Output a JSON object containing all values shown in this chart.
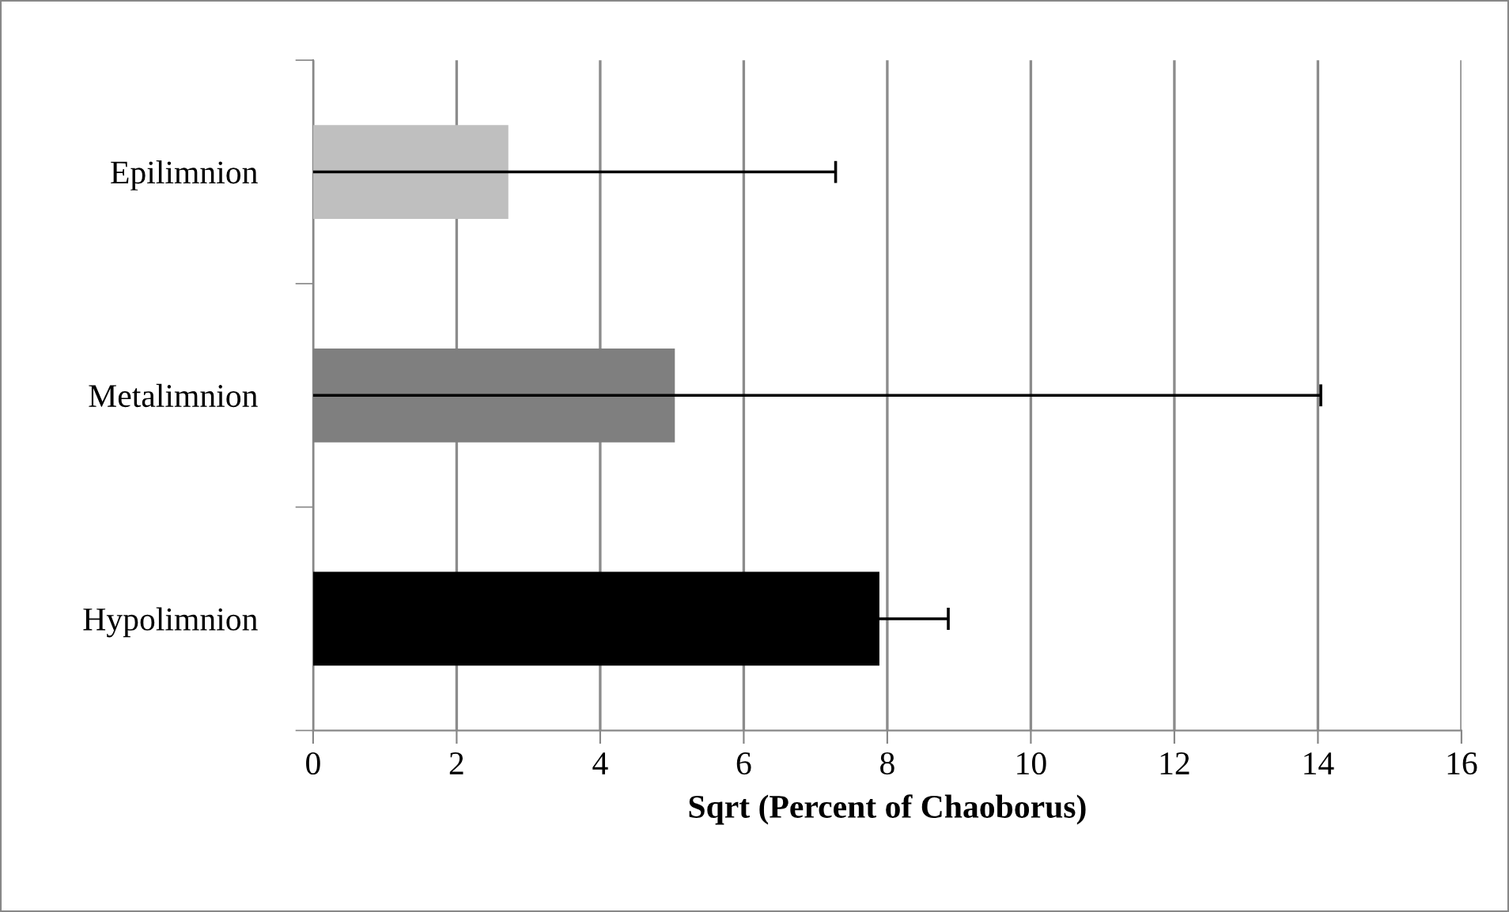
{
  "chart_data": {
    "type": "bar",
    "orientation": "horizontal",
    "xlabel": "Sqrt (Percent of Chaoborus)",
    "categories": [
      "Epilimnion",
      "Metalimnion",
      "Hypolimnion"
    ],
    "values": [
      2.72,
      5.04,
      7.89
    ],
    "errors": [
      4.56,
      9.0,
      0.96
    ],
    "colors": [
      "#bfbfbf",
      "#7f7f7f",
      "#000000"
    ],
    "xlim": [
      0,
      16
    ],
    "xticks": [
      0,
      2,
      4,
      6,
      8,
      10,
      12,
      14,
      16
    ],
    "grid": "x"
  }
}
